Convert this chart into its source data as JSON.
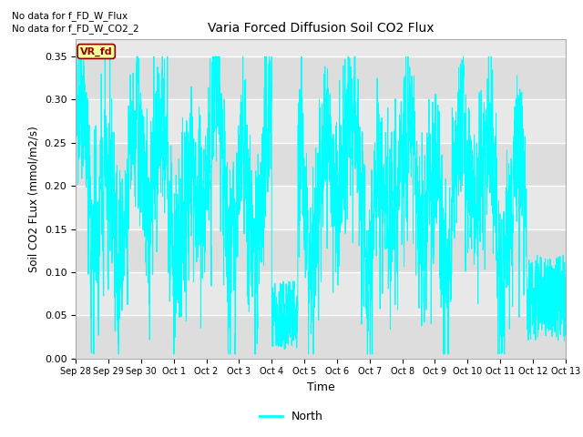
{
  "title": "Varia Forced Diffusion Soil CO2 Flux",
  "xlabel": "Time",
  "ylabel": "Soil CO2 FLux (mmol/m2/s)",
  "ylim": [
    0.0,
    0.37
  ],
  "yticks": [
    0.0,
    0.05,
    0.1,
    0.15,
    0.2,
    0.25,
    0.3,
    0.35
  ],
  "line_color": "#00FFFF",
  "background_color": "#E8E8E8",
  "fig_background": "#FFFFFF",
  "no_data_text1": "No data for f_FD_W_Flux",
  "no_data_text2": "No data for f_FD_W_CO2_2",
  "vr_fd_label": "VR_fd",
  "legend_label": "North",
  "x_tick_labels": [
    "Sep 28",
    "Sep 29",
    "Sep 30",
    "Oct 1",
    "Oct 2",
    "Oct 3",
    "Oct 4",
    "Oct 5",
    "Oct 6",
    "Oct 7",
    "Oct 8",
    "Oct 9",
    "Oct 10",
    "Oct 11",
    "Oct 12",
    "Oct 13"
  ],
  "grid_colors": [
    "#DCDCDC",
    "#C8C8C8"
  ],
  "seed": 42,
  "n_points": 3000
}
